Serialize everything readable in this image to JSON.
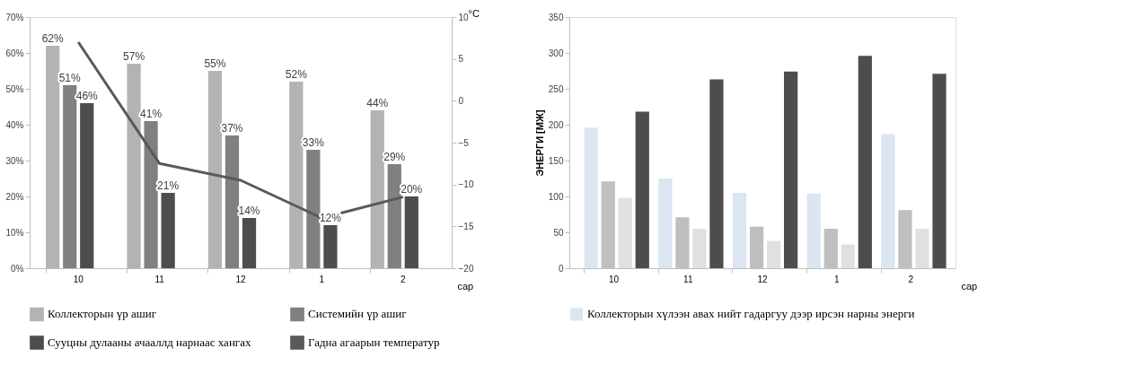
{
  "chart_data": [
    {
      "type": "bar",
      "categories": [
        "10",
        "11",
        "12",
        "1",
        "2"
      ],
      "xlabel": "сар",
      "y2label": "°C",
      "series": [
        {
          "name": "Коллекторын үр ашиг",
          "color": "#b3b3b3",
          "values": [
            62,
            57,
            55,
            52,
            44
          ],
          "value_labels": [
            "62%",
            "57%",
            "55%",
            "52%",
            "44%"
          ]
        },
        {
          "name": "Системийн үр ашиг",
          "color": "#808080",
          "values": [
            51,
            41,
            37,
            33,
            29
          ],
          "value_labels": [
            "51%",
            "41%",
            "37%",
            "33%",
            "29%"
          ]
        },
        {
          "name": "Сууцны дулааны ачааллд нарнаас хангах",
          "color": "#4d4d4d",
          "values": [
            46,
            21,
            14,
            12,
            20
          ],
          "value_labels": [
            "46%",
            "21%",
            "14%",
            "12%",
            "20%"
          ]
        },
        {
          "name": "Гадна агаарын температур",
          "type": "line",
          "axis": "y2",
          "color": "#595959",
          "values": [
            7,
            -7.5,
            -9.5,
            -14,
            -11.5
          ]
        }
      ],
      "ylim": [
        0,
        70
      ],
      "yticks": [
        {
          "value": 0,
          "label": "0%"
        },
        {
          "value": 10,
          "label": "10%"
        },
        {
          "value": 20,
          "label": "20%"
        },
        {
          "value": 30,
          "label": "30%"
        },
        {
          "value": 40,
          "label": "40%"
        },
        {
          "value": 50,
          "label": "50%"
        },
        {
          "value": 60,
          "label": "60%"
        },
        {
          "value": 70,
          "label": "70%"
        }
      ],
      "y2lim": [
        -20,
        10
      ],
      "y2ticks": [
        -20,
        -15,
        -10,
        -5,
        0,
        5,
        10
      ],
      "legend": "bottom",
      "grid": false
    },
    {
      "type": "bar",
      "categories": [
        "10",
        "11",
        "12",
        "1",
        "2"
      ],
      "xlabel": "сар",
      "ylabel": "ЭНЕРГИ [МЖ]",
      "series": [
        {
          "name": "Коллекторын хүлээн авах нийт гадаргуу дээр ирсэн нарны энерги",
          "color": "#dce6f2",
          "values": [
            196,
            125,
            105,
            104,
            187
          ]
        },
        {
          "color": "#bfbfbf",
          "values": [
            121,
            71,
            58,
            55,
            81
          ]
        },
        {
          "color": "#e0e0e0",
          "values": [
            98,
            55,
            38,
            33,
            55
          ]
        },
        {
          "color": "#4d4d4d",
          "values": [
            218,
            263,
            274,
            296,
            271
          ]
        }
      ],
      "ylim": [
        0,
        350
      ],
      "yticks": [
        0,
        50,
        100,
        150,
        200,
        250,
        300,
        350
      ],
      "legend": "bottom",
      "grid": false
    }
  ]
}
